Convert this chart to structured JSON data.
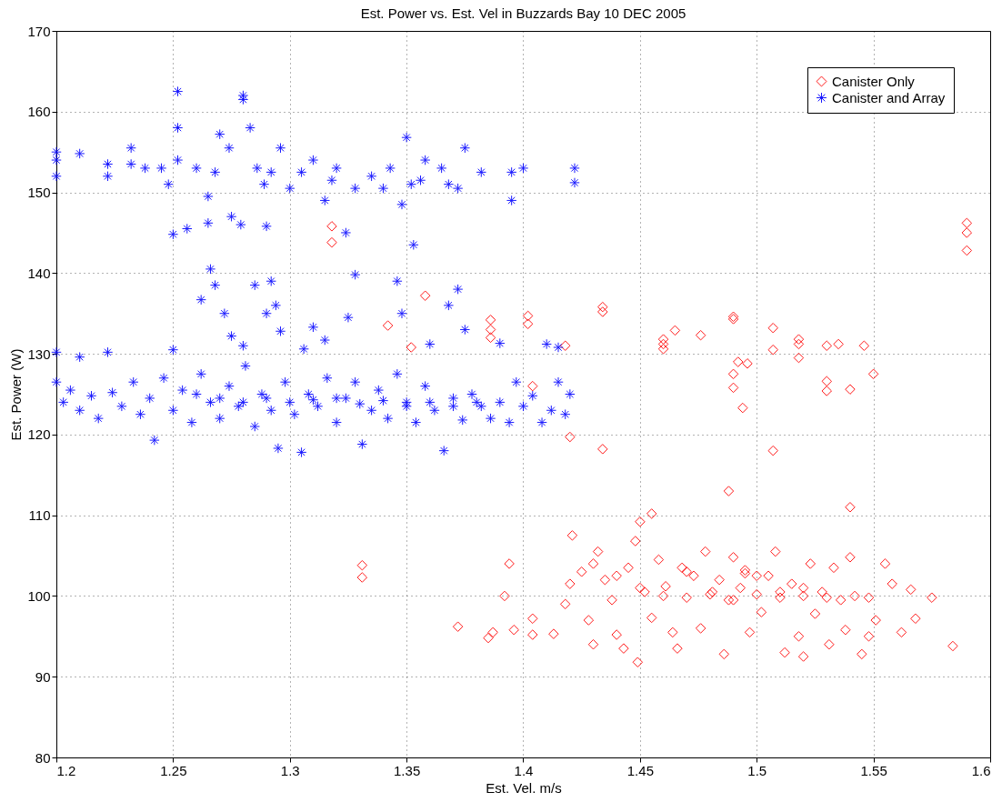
{
  "chart_data": {
    "type": "scatter",
    "title": "Est. Power vs. Est. Vel in Buzzards Bay 10 DEC 2005",
    "xlabel": "Est. Vel. m/s",
    "ylabel": "Est. Power (W)",
    "xlim": [
      1.2,
      1.6
    ],
    "xticks": [
      1.2,
      1.25,
      1.3,
      1.35,
      1.4,
      1.45,
      1.5,
      1.55,
      1.6
    ],
    "ylim": [
      80,
      170
    ],
    "yticks": [
      80,
      90,
      100,
      110,
      120,
      130,
      140,
      150,
      160,
      170
    ],
    "grid": true,
    "legend": "top right",
    "series": [
      {
        "name": "Canister Only",
        "color": "#ff0000",
        "marker": "diamond",
        "x": [
          1.318,
          1.318,
          1.59,
          1.59,
          1.59,
          1.331,
          1.331,
          1.342,
          1.352,
          1.358,
          1.386,
          1.386,
          1.386,
          1.402,
          1.402,
          1.418,
          1.404,
          1.42,
          1.434,
          1.434,
          1.434,
          1.46,
          1.46,
          1.46,
          1.465,
          1.476,
          1.49,
          1.49,
          1.492,
          1.49,
          1.49,
          1.494,
          1.496,
          1.507,
          1.507,
          1.507,
          1.518,
          1.518,
          1.518,
          1.53,
          1.535,
          1.53,
          1.53,
          1.54,
          1.546,
          1.55,
          1.54,
          1.488,
          1.455,
          1.45,
          1.372,
          1.385,
          1.387,
          1.392,
          1.394,
          1.396,
          1.404,
          1.404,
          1.413,
          1.418,
          1.42,
          1.421,
          1.425,
          1.428,
          1.43,
          1.432,
          1.435,
          1.438,
          1.44,
          1.443,
          1.445,
          1.448,
          1.449,
          1.452,
          1.455,
          1.458,
          1.461,
          1.464,
          1.466,
          1.468,
          1.47,
          1.473,
          1.476,
          1.478,
          1.481,
          1.484,
          1.486,
          1.488,
          1.49,
          1.493,
          1.495,
          1.497,
          1.5,
          1.502,
          1.505,
          1.508,
          1.51,
          1.512,
          1.515,
          1.518,
          1.52,
          1.523,
          1.525,
          1.528,
          1.531,
          1.533,
          1.536,
          1.538,
          1.54,
          1.542,
          1.545,
          1.548,
          1.551,
          1.555,
          1.558,
          1.562,
          1.566,
          1.568,
          1.575,
          1.584,
          1.548,
          1.52,
          1.44,
          1.45,
          1.46,
          1.47,
          1.48,
          1.49,
          1.5,
          1.51,
          1.52,
          1.53,
          1.495,
          1.43
        ],
        "values": [
          145.8,
          143.8,
          146.2,
          145,
          142.8,
          103.8,
          102.3,
          133.5,
          130.8,
          137.2,
          134.2,
          133,
          132,
          134.7,
          133.7,
          131,
          126,
          119.7,
          135.8,
          135.2,
          118.2,
          131.8,
          131.2,
          130.6,
          132.9,
          132.3,
          134.6,
          134.3,
          129,
          127.5,
          125.8,
          123.3,
          128.8,
          133.2,
          130.5,
          118,
          131.8,
          131.2,
          129.5,
          131,
          131.2,
          126.6,
          125.4,
          125.6,
          131,
          127.5,
          111,
          113,
          110.2,
          109.2,
          96.2,
          94.8,
          95.5,
          100,
          104,
          95.8,
          97.2,
          95.2,
          95.3,
          99,
          101.5,
          107.5,
          103,
          97,
          94,
          105.5,
          102,
          99.5,
          95.2,
          93.5,
          103.5,
          106.8,
          91.8,
          100.5,
          97.3,
          104.5,
          101.2,
          95.5,
          93.5,
          103.5,
          99.8,
          102.5,
          96,
          105.5,
          100.5,
          102,
          92.8,
          99.5,
          104.8,
          101,
          102.8,
          95.5,
          100.2,
          98,
          102.5,
          105.5,
          99.8,
          93,
          101.5,
          95,
          100,
          104,
          97.8,
          100.5,
          94,
          103.5,
          99.5,
          95.8,
          104.8,
          100,
          92.8,
          99.8,
          97,
          104,
          101.5,
          95.5,
          100.8,
          97.2,
          99.8,
          93.8,
          95,
          92.5,
          102.5,
          101,
          100,
          103,
          100.2,
          99.5,
          102.5,
          100.5,
          101,
          99.8,
          103.2,
          104
        ]
      },
      {
        "name": "Canister and Array",
        "color": "#0000ff",
        "marker": "cross",
        "x": [
          1.2,
          1.2,
          1.2,
          1.21,
          1.222,
          1.222,
          1.232,
          1.232,
          1.238,
          1.245,
          1.248,
          1.252,
          1.252,
          1.252,
          1.256,
          1.25,
          1.26,
          1.265,
          1.265,
          1.268,
          1.27,
          1.274,
          1.275,
          1.279,
          1.28,
          1.28,
          1.283,
          1.286,
          1.289,
          1.29,
          1.292,
          1.296,
          1.3,
          1.305,
          1.31,
          1.315,
          1.318,
          1.32,
          1.324,
          1.328,
          1.335,
          1.34,
          1.343,
          1.348,
          1.35,
          1.352,
          1.353,
          1.356,
          1.358,
          1.365,
          1.368,
          1.372,
          1.375,
          1.382,
          1.395,
          1.395,
          1.4,
          1.422,
          1.422,
          1.262,
          1.266,
          1.268,
          1.272,
          1.275,
          1.28,
          1.285,
          1.29,
          1.292,
          1.294,
          1.296,
          1.306,
          1.31,
          1.315,
          1.325,
          1.328,
          1.346,
          1.348,
          1.36,
          1.368,
          1.372,
          1.375,
          1.39,
          1.41,
          1.415,
          1.2,
          1.21,
          1.222,
          1.25,
          1.2,
          1.203,
          1.206,
          1.21,
          1.215,
          1.218,
          1.224,
          1.228,
          1.233,
          1.236,
          1.24,
          1.242,
          1.246,
          1.25,
          1.254,
          1.258,
          1.262,
          1.266,
          1.27,
          1.274,
          1.278,
          1.281,
          1.285,
          1.288,
          1.292,
          1.295,
          1.298,
          1.302,
          1.305,
          1.308,
          1.312,
          1.316,
          1.32,
          1.324,
          1.328,
          1.331,
          1.335,
          1.338,
          1.342,
          1.346,
          1.35,
          1.354,
          1.358,
          1.362,
          1.366,
          1.37,
          1.374,
          1.378,
          1.382,
          1.386,
          1.39,
          1.394,
          1.397,
          1.4,
          1.404,
          1.408,
          1.412,
          1.415,
          1.418,
          1.42,
          1.26,
          1.27,
          1.28,
          1.29,
          1.3,
          1.31,
          1.32,
          1.33,
          1.34,
          1.35,
          1.36,
          1.37,
          1.38
        ],
        "values": [
          155,
          152,
          154,
          154.8,
          153.5,
          152,
          155.5,
          153.5,
          153,
          153,
          151,
          162.5,
          158,
          154,
          145.5,
          144.8,
          153,
          149.5,
          146.2,
          152.5,
          157.2,
          155.5,
          147,
          146,
          162,
          161.5,
          158,
          153,
          151,
          145.8,
          152.5,
          155.5,
          150.5,
          152.5,
          154,
          149,
          151.5,
          153,
          145,
          150.5,
          152,
          150.5,
          153,
          148.5,
          156.8,
          151,
          143.5,
          151.5,
          154,
          153,
          151,
          150.5,
          155.5,
          152.5,
          149,
          152.5,
          153,
          153,
          151.2,
          136.7,
          140.5,
          138.5,
          135,
          132.2,
          131,
          138.5,
          135,
          139,
          136,
          132.8,
          130.6,
          133.3,
          131.7,
          134.5,
          139.8,
          139,
          135,
          131.2,
          136,
          138,
          133,
          131.3,
          131.2,
          130.8,
          130.2,
          129.6,
          130.2,
          130.5,
          126.5,
          124,
          125.5,
          123,
          124.8,
          122,
          125.2,
          123.5,
          126.5,
          122.5,
          124.5,
          119.3,
          127,
          123,
          125.5,
          121.5,
          127.5,
          124,
          122,
          126,
          123.5,
          128.5,
          121,
          125,
          123,
          118.3,
          126.5,
          122.5,
          117.8,
          125,
          123.5,
          127,
          121.5,
          124.5,
          126.5,
          118.8,
          123,
          125.5,
          122,
          127.5,
          124,
          121.5,
          126,
          123,
          118,
          124.5,
          121.8,
          125,
          123.5,
          122,
          124,
          121.5,
          126.5,
          123.5,
          124.8,
          121.5,
          123,
          126.5,
          122.5,
          125,
          125,
          124.5,
          124,
          124.5,
          124,
          124.3,
          124.5,
          123.8,
          124.2,
          123.5,
          124,
          123.5,
          124
        ]
      }
    ]
  }
}
